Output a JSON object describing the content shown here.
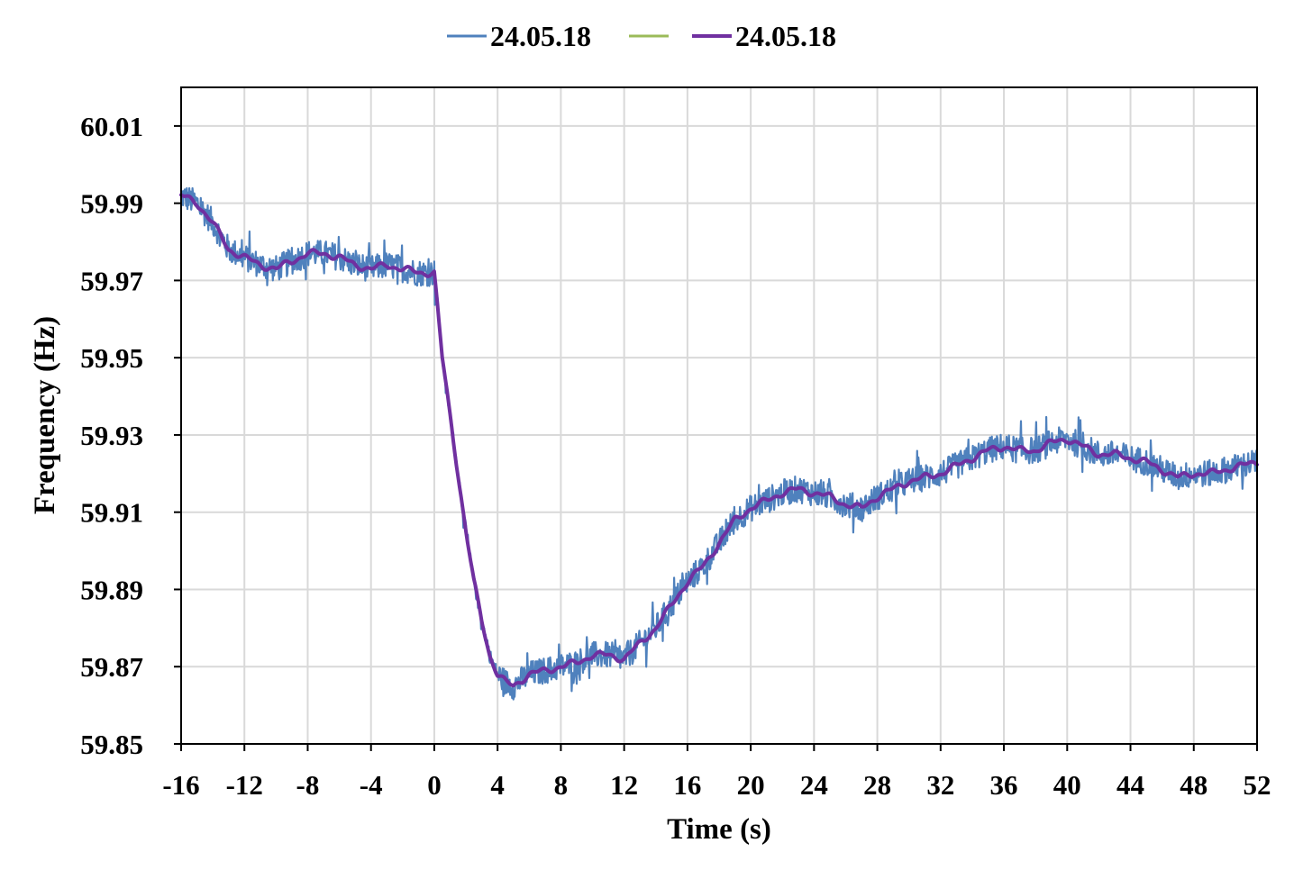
{
  "chart_data": {
    "type": "line",
    "title": "",
    "xlabel": "Time (s)",
    "ylabel": "Frequency (Hz)",
    "xlim": [
      -16,
      52
    ],
    "ylim": [
      59.85,
      60.02
    ],
    "x_ticks": [
      "-16",
      "-12",
      "-8",
      "-4",
      "0",
      "4",
      "8",
      "12",
      "16",
      "20",
      "24",
      "28",
      "32",
      "36",
      "40",
      "44",
      "48",
      "52"
    ],
    "y_ticks": [
      "59.85",
      "59.87",
      "59.89",
      "59.91",
      "59.93",
      "59.95",
      "59.97",
      "59.99",
      "60.01"
    ],
    "grid": true,
    "legend_position": "top-center",
    "series": [
      {
        "name": "24.05.18",
        "color": "#4f81bd",
        "style": "raw measurement, noisy",
        "x": [
          -16,
          -15,
          -14,
          -13,
          -12,
          -11,
          -10,
          -9,
          -8,
          -7,
          -6,
          -5,
          -4,
          -3,
          -2,
          -1,
          0,
          0.5,
          1,
          1.5,
          2,
          2.5,
          3,
          3.5,
          4,
          4.5,
          5,
          6,
          7,
          8,
          9,
          10,
          11,
          12,
          13,
          14,
          15,
          16,
          17,
          18,
          19,
          20,
          21,
          22,
          23,
          24,
          25,
          26,
          27,
          28,
          29,
          30,
          31,
          32,
          33,
          34,
          35,
          36,
          37,
          38,
          39,
          40,
          41,
          42,
          43,
          44,
          45,
          46,
          47,
          48,
          49,
          50,
          51,
          52
        ],
        "y": [
          59.992,
          59.99,
          59.985,
          59.978,
          59.976,
          59.974,
          59.973,
          59.975,
          59.977,
          59.977,
          59.976,
          59.974,
          59.973,
          59.974,
          59.973,
          59.972,
          59.972,
          59.95,
          59.935,
          59.92,
          59.905,
          59.892,
          59.882,
          59.873,
          59.868,
          59.866,
          59.865,
          59.868,
          59.869,
          59.87,
          59.871,
          59.873,
          59.873,
          59.872,
          59.876,
          59.88,
          59.886,
          59.892,
          59.896,
          59.902,
          59.908,
          59.911,
          59.913,
          59.915,
          59.916,
          59.915,
          59.914,
          59.912,
          59.911,
          59.914,
          59.916,
          59.918,
          59.919,
          59.92,
          59.922,
          59.924,
          59.926,
          59.927,
          59.926,
          59.926,
          59.928,
          59.929,
          59.927,
          59.925,
          59.925,
          59.924,
          59.923,
          59.921,
          59.919,
          59.92,
          59.92,
          59.921,
          59.922,
          59.923
        ]
      },
      {
        "name": "",
        "color": "#9bbb59",
        "style": "legend only"
      },
      {
        "name": "24.05.18",
        "color": "#7030a0",
        "style": "smoothed",
        "x": [
          -16,
          -15,
          -14,
          -13,
          -12,
          -11,
          -10,
          -9,
          -8,
          -7,
          -6,
          -5,
          -4,
          -3,
          -2,
          -1,
          0,
          0.5,
          1,
          1.5,
          2,
          2.5,
          3,
          3.5,
          4,
          4.5,
          5,
          6,
          7,
          8,
          9,
          10,
          11,
          12,
          13,
          14,
          15,
          16,
          17,
          18,
          19,
          20,
          21,
          22,
          23,
          24,
          25,
          26,
          27,
          28,
          29,
          30,
          31,
          32,
          33,
          34,
          35,
          36,
          37,
          38,
          39,
          40,
          41,
          42,
          43,
          44,
          45,
          46,
          47,
          48,
          49,
          50,
          51,
          52
        ],
        "y": [
          59.992,
          59.99,
          59.985,
          59.978,
          59.976,
          59.974,
          59.973,
          59.975,
          59.977,
          59.977,
          59.976,
          59.974,
          59.973,
          59.974,
          59.973,
          59.972,
          59.972,
          59.95,
          59.935,
          59.92,
          59.905,
          59.892,
          59.882,
          59.873,
          59.868,
          59.866,
          59.865,
          59.868,
          59.869,
          59.87,
          59.871,
          59.873,
          59.873,
          59.872,
          59.876,
          59.88,
          59.886,
          59.892,
          59.896,
          59.902,
          59.908,
          59.911,
          59.913,
          59.915,
          59.916,
          59.915,
          59.914,
          59.912,
          59.911,
          59.914,
          59.916,
          59.918,
          59.919,
          59.92,
          59.922,
          59.924,
          59.926,
          59.927,
          59.926,
          59.926,
          59.928,
          59.929,
          59.927,
          59.925,
          59.925,
          59.924,
          59.923,
          59.921,
          59.919,
          59.92,
          59.92,
          59.921,
          59.922,
          59.923
        ]
      }
    ]
  }
}
